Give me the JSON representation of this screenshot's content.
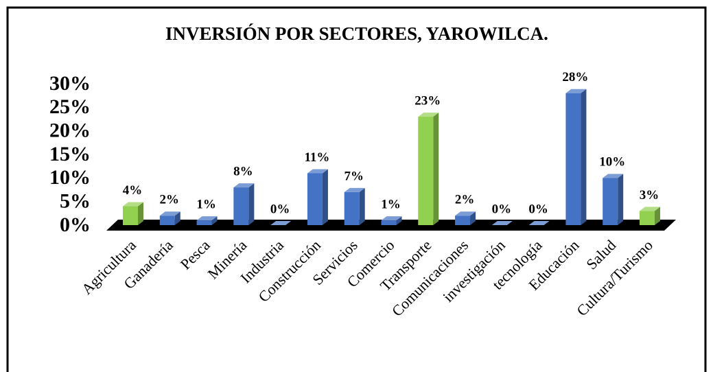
{
  "chart_data": {
    "type": "bar3d",
    "title": "INVERSIÓN POR SECTORES, YAROWILCA.",
    "categories": [
      "Agricultura",
      "Ganadería",
      "Pesca",
      "Minería",
      "Industria",
      "Construcción",
      "Servicios",
      "Comercio",
      "Transporte",
      "Comunicaciones",
      "investigación",
      "tecnología",
      "Educación",
      "Salud",
      "Cultura/Turismo"
    ],
    "values": [
      4,
      2,
      1,
      8,
      0,
      11,
      7,
      1,
      23,
      2,
      0,
      0,
      28,
      10,
      3
    ],
    "value_labels": [
      "4%",
      "2%",
      "1%",
      "8%",
      "0%",
      "11%",
      "7%",
      "1%",
      "23%",
      "2%",
      "0%",
      "0%",
      "28%",
      "10%",
      "3%"
    ],
    "colors": [
      "#92d050",
      "#4472c4",
      "#4472c4",
      "#4472c4",
      "#4472c4",
      "#4472c4",
      "#4472c4",
      "#4472c4",
      "#92d050",
      "#4472c4",
      "#4472c4",
      "#4472c4",
      "#4472c4",
      "#4472c4",
      "#92d050"
    ],
    "ylim": [
      0,
      30
    ],
    "yticks": [
      {
        "value": 0,
        "label": "0%"
      },
      {
        "value": 5,
        "label": "5%"
      },
      {
        "value": 10,
        "label": "10%"
      },
      {
        "value": 15,
        "label": "15%"
      },
      {
        "value": 20,
        "label": "20%"
      },
      {
        "value": 25,
        "label": "25%"
      },
      {
        "value": 30,
        "label": "30%"
      }
    ],
    "grid": false
  }
}
